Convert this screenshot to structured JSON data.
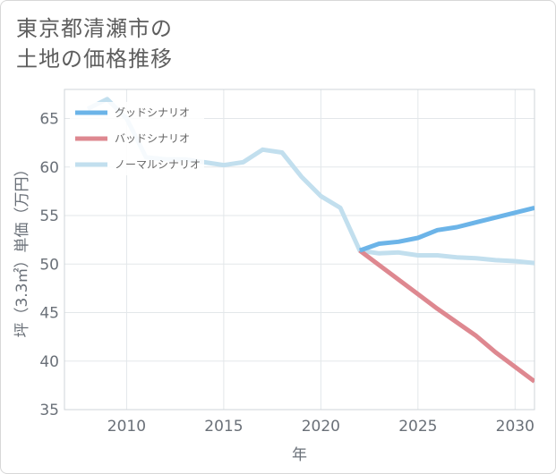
{
  "title": {
    "line1": "東京都清瀬市の",
    "line2": "土地の価格推移"
  },
  "colors": {
    "good": "#6cb4e8",
    "bad": "#de8890",
    "normal": "#c2dfee",
    "grid": "#e3e7ea",
    "frame": "#cfd4d8"
  },
  "chart_data": {
    "type": "line",
    "title": "東京都清瀬市の土地の価格推移",
    "xlabel": "年",
    "ylabel": "坪（3.3㎡）単価（万円）",
    "xlim": [
      2006.8,
      2031
    ],
    "ylim": [
      35,
      68
    ],
    "xticks": [
      2010,
      2015,
      2020,
      2025,
      2030
    ],
    "yticks": [
      35,
      40,
      45,
      50,
      55,
      60,
      65
    ],
    "legend": "top-left",
    "series": [
      {
        "name": "グッドシナリオ",
        "key": "good",
        "x": [
          2022,
          2023,
          2024,
          2025,
          2026,
          2027,
          2028,
          2029,
          2030,
          2031
        ],
        "y": [
          51.4,
          52.1,
          52.3,
          52.7,
          53.5,
          53.8,
          54.3,
          54.8,
          55.3,
          55.8
        ]
      },
      {
        "name": "バッドシナリオ",
        "key": "bad",
        "x": [
          2022,
          2023,
          2024,
          2025,
          2026,
          2027,
          2028,
          2029,
          2030,
          2031
        ],
        "y": [
          51.4,
          49.9,
          48.4,
          46.9,
          45.4,
          44.0,
          42.6,
          40.9,
          39.4,
          37.9
        ]
      },
      {
        "name": "ノーマルシナリオ",
        "key": "normal",
        "x": [
          2008,
          2009,
          2010,
          2011,
          2012,
          2013,
          2014,
          2015,
          2016,
          2017,
          2018,
          2019,
          2020,
          2021,
          2022,
          2023,
          2024,
          2025,
          2026,
          2027,
          2028,
          2029,
          2030,
          2031
        ],
        "y": [
          66.0,
          67.0,
          65.0,
          61.0,
          60.8,
          60.8,
          60.5,
          60.2,
          60.5,
          61.8,
          61.5,
          59.0,
          57.0,
          55.8,
          51.4,
          51.1,
          51.2,
          50.9,
          50.9,
          50.7,
          50.6,
          50.4,
          50.3,
          50.1
        ]
      }
    ]
  }
}
